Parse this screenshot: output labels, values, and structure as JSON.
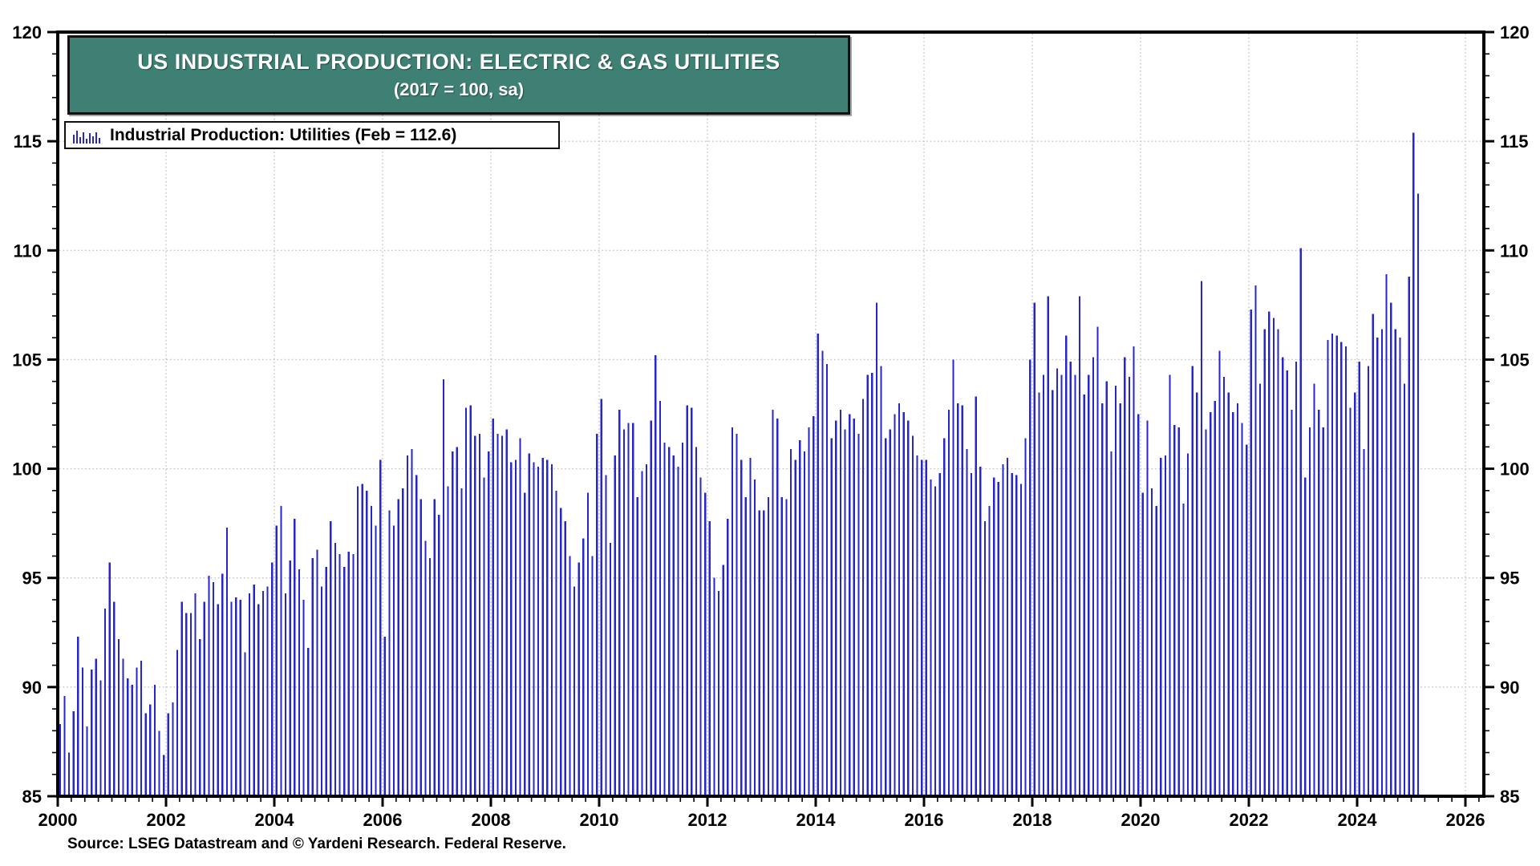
{
  "title": {
    "line1": "US INDUSTRIAL PRODUCTION: ELECTRIC & GAS UTILITIES",
    "line2": "(2017 = 100, sa)"
  },
  "legend": {
    "label": "Industrial Production: Utilities (Feb = 112.6)"
  },
  "source": "Source: LSEG Datastream and © Yardeni Research. Federal Reserve.",
  "colors": {
    "bar": "#2626CC",
    "title_bg": "#3E8174",
    "grid": "#c4c4c4",
    "axis": "#000000",
    "title_text": "#ffffff"
  },
  "chart_data": {
    "type": "bar",
    "title": "US INDUSTRIAL PRODUCTION: ELECTRIC & GAS UTILITIES",
    "subtitle": "(2017 = 100, sa)",
    "series_name": "Industrial Production: Utilities",
    "latest_point": {
      "label": "Feb",
      "value": 112.6
    },
    "frequency": "monthly",
    "x_start": "2000-01",
    "x_end": "2025-02",
    "ylim": [
      85,
      120
    ],
    "xlim_years": [
      2000,
      2026.35
    ],
    "y_ticks": [
      85,
      90,
      95,
      100,
      105,
      110,
      115,
      120
    ],
    "y_minor_step": 1,
    "x_tick_years": [
      2000,
      2002,
      2004,
      2006,
      2008,
      2010,
      2012,
      2014,
      2016,
      2018,
      2020,
      2022,
      2024,
      2026
    ],
    "x_minor_step_years": 0.25,
    "grid": "dotted-at-major-ticks",
    "legend_position": "top-left",
    "years_order": [
      "2000",
      "2001",
      "2002",
      "2003",
      "2004",
      "2005",
      "2006",
      "2007",
      "2008",
      "2009",
      "2010",
      "2011",
      "2012",
      "2013",
      "2014",
      "2015",
      "2016",
      "2017",
      "2018",
      "2019",
      "2020",
      "2021",
      "2022",
      "2023",
      "2024",
      "2025"
    ],
    "values_by_year": {
      "2000": [
        88.3,
        89.6,
        87.0,
        88.9,
        92.3,
        90.9,
        88.2,
        90.8,
        91.3,
        90.3,
        93.6,
        95.7
      ],
      "2001": [
        93.9,
        92.2,
        91.3,
        90.4,
        90.1,
        90.9,
        91.2,
        88.8,
        89.2,
        90.1,
        88.0,
        86.9
      ],
      "2002": [
        88.8,
        89.3,
        91.7,
        93.9,
        93.4,
        93.4,
        94.3,
        92.2,
        93.9,
        95.1,
        94.8,
        93.8
      ],
      "2003": [
        95.2,
        97.3,
        93.9,
        94.1,
        94.0,
        91.6,
        94.3,
        94.7,
        93.8,
        94.4,
        94.6,
        95.7
      ],
      "2004": [
        97.4,
        98.3,
        94.3,
        95.8,
        97.7,
        95.4,
        94.0,
        91.8,
        95.9,
        96.3,
        94.6,
        95.5
      ],
      "2005": [
        97.6,
        96.6,
        96.1,
        95.5,
        96.2,
        96.1,
        99.2,
        99.3,
        99.0,
        98.3,
        97.4,
        100.4
      ],
      "2006": [
        92.3,
        98.1,
        97.4,
        98.6,
        99.1,
        100.6,
        100.9,
        99.7,
        98.6,
        96.7,
        95.9,
        98.6
      ],
      "2007": [
        97.9,
        104.1,
        99.2,
        100.8,
        101.0,
        99.1,
        102.8,
        102.9,
        101.5,
        101.6,
        99.6,
        100.8
      ],
      "2008": [
        102.3,
        101.6,
        101.5,
        101.8,
        100.3,
        100.4,
        101.4,
        98.9,
        100.7,
        100.3,
        100.1,
        100.5
      ],
      "2009": [
        100.4,
        100.2,
        99.0,
        98.2,
        97.6,
        96.0,
        94.6,
        95.7,
        96.8,
        98.9,
        96.0,
        101.6
      ],
      "2010": [
        103.2,
        99.7,
        96.6,
        100.6,
        102.7,
        101.8,
        102.1,
        102.1,
        98.7,
        99.9,
        100.2,
        102.2
      ],
      "2011": [
        105.2,
        103.1,
        101.2,
        101.0,
        100.6,
        100.1,
        101.2,
        102.9,
        102.8,
        101.0,
        99.6,
        98.9
      ],
      "2012": [
        97.6,
        95.0,
        94.4,
        95.6,
        97.7,
        101.9,
        101.6,
        100.4,
        98.7,
        100.5,
        99.5,
        98.1
      ],
      "2013": [
        98.1,
        98.7,
        102.7,
        102.3,
        98.7,
        98.6,
        100.9,
        100.4,
        101.3,
        100.8,
        101.9,
        102.4
      ],
      "2014": [
        106.2,
        105.4,
        104.8,
        101.4,
        102.2,
        102.7,
        101.8,
        102.5,
        102.3,
        101.6,
        103.2,
        104.3
      ],
      "2015": [
        104.4,
        107.6,
        104.7,
        101.4,
        101.8,
        102.5,
        103.0,
        102.6,
        102.2,
        101.5,
        100.6,
        100.4
      ],
      "2016": [
        100.4,
        99.5,
        99.2,
        99.8,
        101.4,
        102.7,
        105.0,
        103.0,
        102.9,
        100.9,
        99.8,
        103.3
      ],
      "2017": [
        100.1,
        97.6,
        98.3,
        99.6,
        99.4,
        100.2,
        100.5,
        99.8,
        99.7,
        99.3,
        101.4,
        105.0
      ],
      "2018": [
        107.6,
        103.5,
        104.3,
        107.9,
        103.6,
        104.6,
        104.3,
        106.1,
        104.9,
        104.3,
        107.9,
        103.4
      ],
      "2019": [
        104.3,
        105.1,
        106.5,
        103.0,
        104.0,
        100.8,
        103.8,
        103.0,
        105.1,
        104.2,
        105.6,
        102.5
      ],
      "2020": [
        98.9,
        102.2,
        99.1,
        98.3,
        100.5,
        100.6,
        104.3,
        102.0,
        101.9,
        98.4,
        100.7,
        104.7
      ],
      "2021": [
        103.5,
        108.6,
        101.8,
        102.6,
        103.1,
        105.4,
        104.2,
        103.5,
        102.6,
        103.0,
        102.1,
        101.1
      ],
      "2022": [
        107.3,
        108.4,
        103.9,
        106.4,
        107.2,
        106.9,
        106.4,
        105.1,
        104.5,
        102.7,
        104.9,
        110.1
      ],
      "2023": [
        99.6,
        101.9,
        103.9,
        102.7,
        101.9,
        105.9,
        106.2,
        106.1,
        105.8,
        105.6,
        102.8,
        103.5
      ],
      "2024": [
        104.9,
        100.9,
        104.7,
        107.1,
        106.0,
        106.4,
        108.9,
        107.6,
        106.4,
        106.0,
        103.9,
        108.8
      ],
      "2025": [
        115.4,
        112.6
      ]
    }
  }
}
